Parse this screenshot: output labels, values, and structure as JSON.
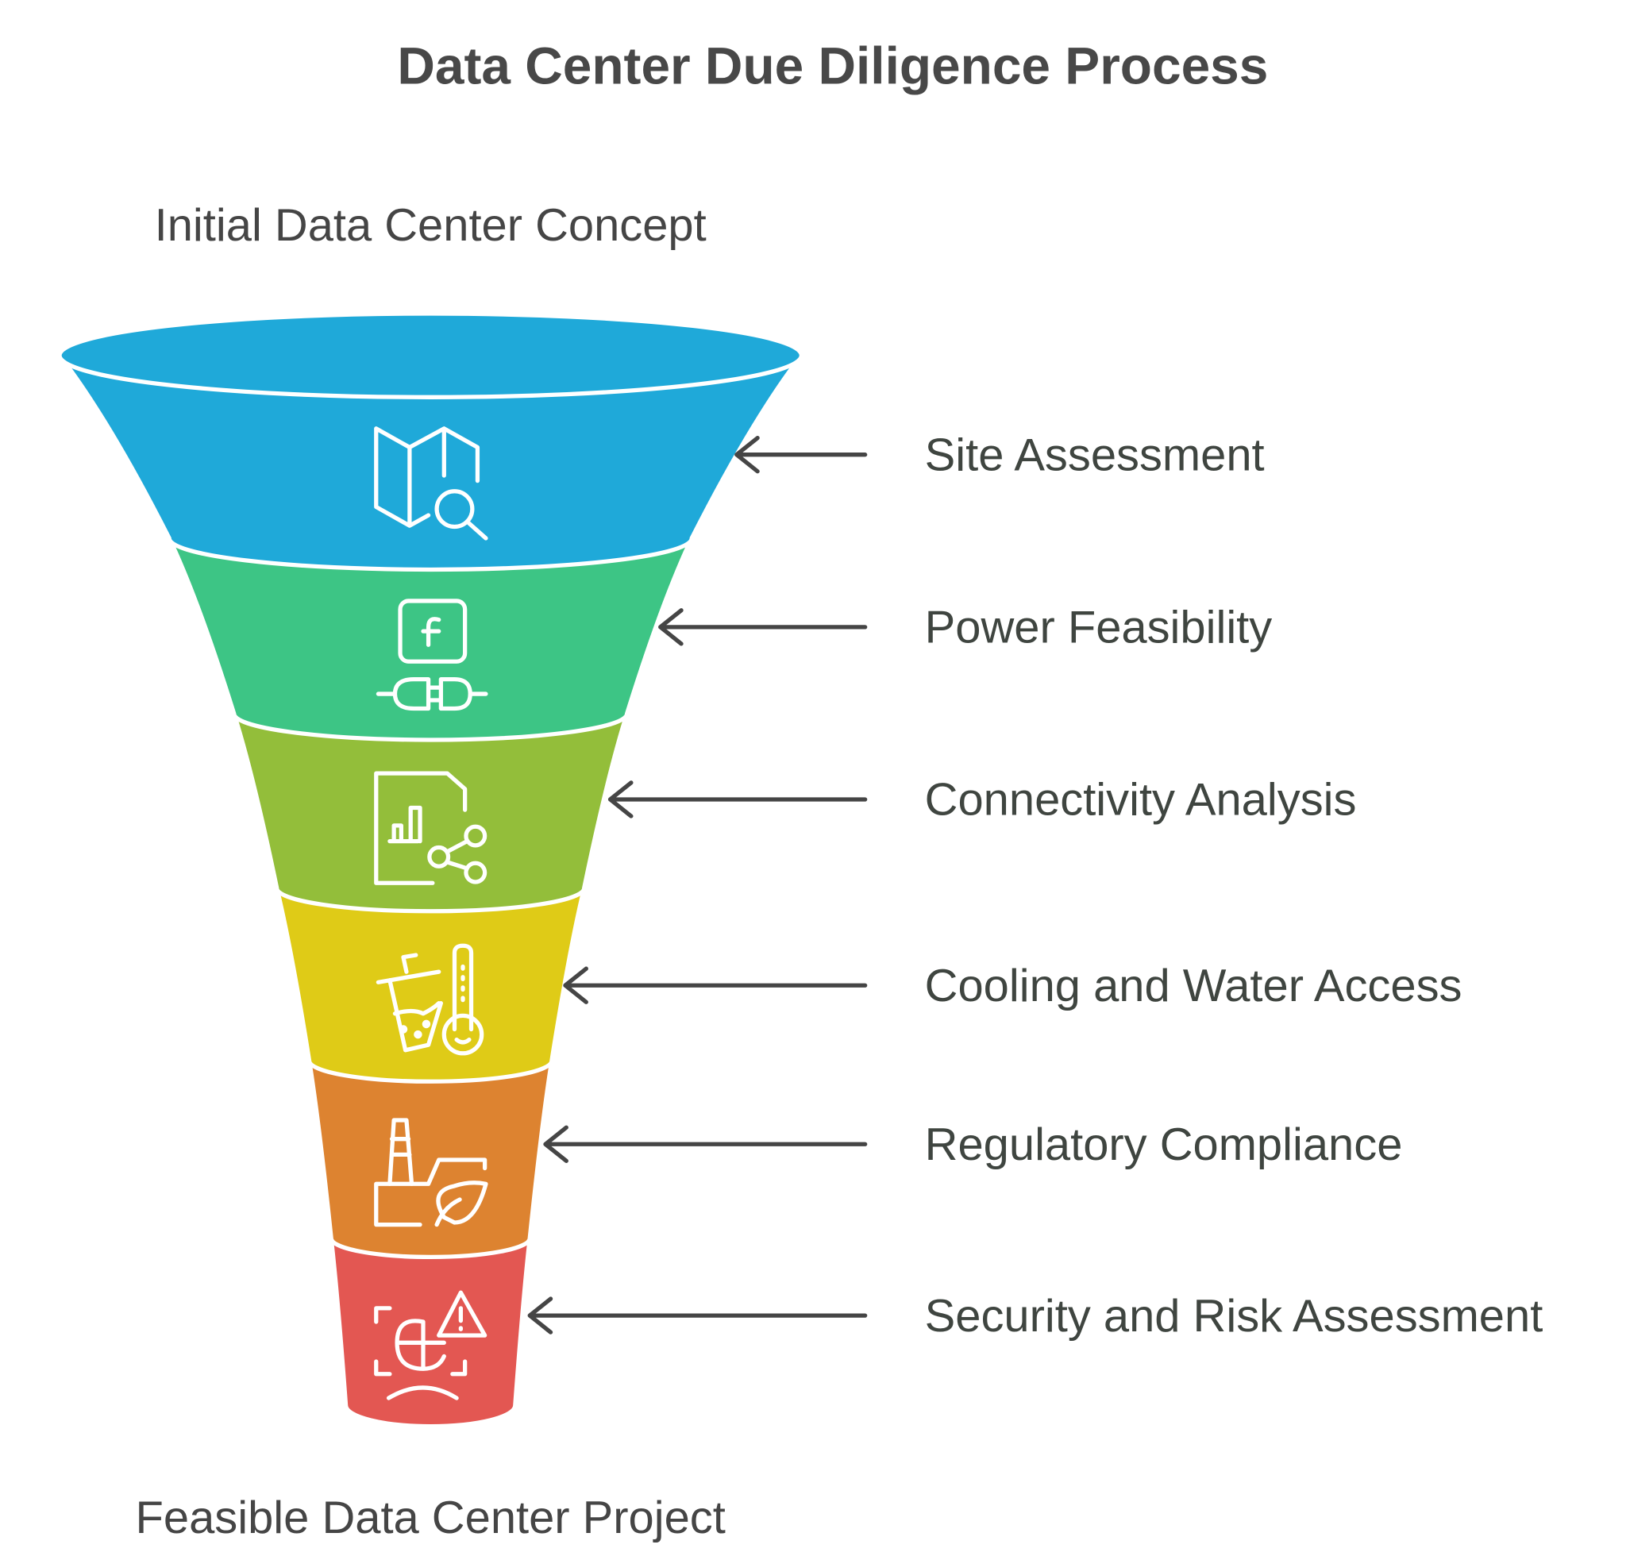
{
  "title": "Data Center Due Diligence Process",
  "input_label": "Initial Data Center Concept",
  "output_label": "Feasible Data Center Project",
  "stages": [
    {
      "label": "Site Assessment",
      "color": "#1FA9D9",
      "icon": "map-search-icon"
    },
    {
      "label": "Power Feasibility",
      "color": "#3DC585",
      "icon": "plug-power-icon"
    },
    {
      "label": "Connectivity Analysis",
      "color": "#93BE3A",
      "icon": "document-chart-share-icon"
    },
    {
      "label": "Cooling and Water Access",
      "color": "#DFCB17",
      "icon": "drink-thermometer-icon"
    },
    {
      "label": "Regulatory Compliance",
      "color": "#DD8330",
      "icon": "factory-leaf-icon"
    },
    {
      "label": "Security and Risk Assessment",
      "color": "#E35752",
      "icon": "risk-warning-icon"
    }
  ]
}
